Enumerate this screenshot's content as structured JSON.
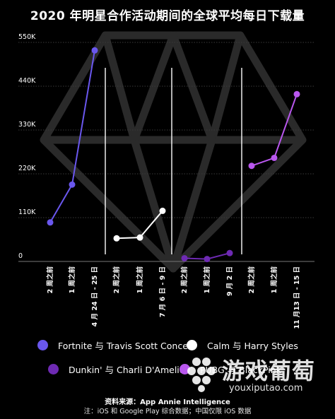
{
  "chart_data": {
    "type": "line",
    "title": "2020 年明星合作活动期间的全球平均每日下载量",
    "y_ticks": [
      "0",
      "110K",
      "220K",
      "330K",
      "440K",
      "550K"
    ],
    "ylim": [
      0,
      550000
    ],
    "x_labels": [
      "2 周之前",
      "1 周之前",
      "4 月 24 日 - 25 日",
      "2 周之前",
      "1 周之前",
      "7 月 6 日 - 9 日",
      "2 周之前",
      "1 周之前",
      "9 月 2 日",
      "2 周之前",
      "1 周之前",
      "11 月13 日 - 15 日"
    ],
    "series": [
      {
        "name": "Fortnite 与 Travis Scott Concert",
        "color": "#6a57ee",
        "values": [
          98000,
          193000,
          530000
        ]
      },
      {
        "name": "Calm 与 Harry Styles",
        "color": "#ffffff",
        "values": [
          58000,
          60000,
          127000
        ]
      },
      {
        "name": "Dunkin' 与 Charli D'Amelio",
        "color": "#6e2ab3",
        "values": [
          8000,
          6000,
          21000
        ]
      },
      {
        "name": "PUBG 与 BlackPink",
        "color": "#b957ee",
        "values": [
          240000,
          260000,
          420000
        ]
      }
    ],
    "grid": true
  },
  "source": "资料来源：App Annie Intelligence",
  "note": "注：iOS 和 Google Play 综合数据；中国仅限 iOS 数据",
  "watermark": {
    "text_cn": "游戏葡萄",
    "url": "youxiputao.com"
  }
}
